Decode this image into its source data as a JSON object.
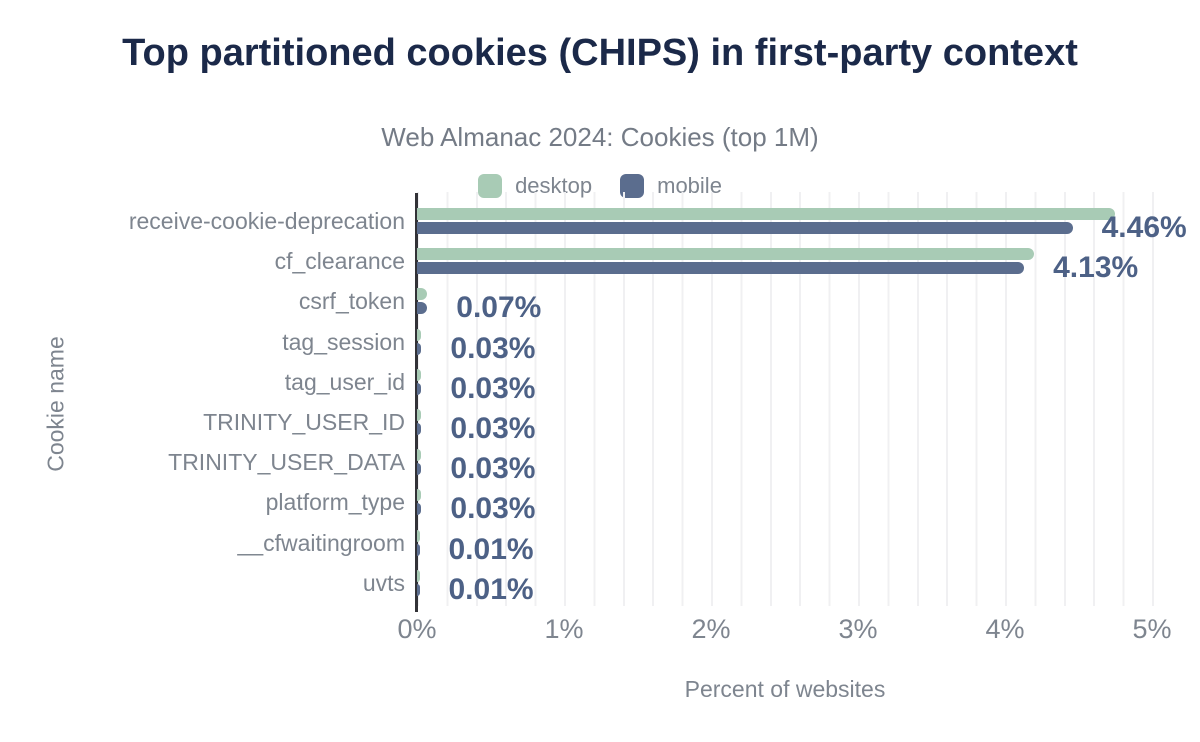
{
  "chart_data": {
    "type": "bar",
    "orientation": "horizontal",
    "title": "Top partitioned cookies (CHIPS) in first-party context",
    "subtitle": "Web Almanac 2024: Cookies (top 1M)",
    "xlabel": "Percent of websites",
    "ylabel": "Cookie name",
    "xlim": [
      0,
      5
    ],
    "xtick_labels": [
      "0%",
      "1%",
      "2%",
      "3%",
      "4%",
      "5%"
    ],
    "xtick_values": [
      0,
      1,
      2,
      3,
      4,
      5
    ],
    "grid": {
      "minor_step_pct": 0.2,
      "on": true
    },
    "legend_position": "top",
    "categories": [
      "receive-cookie-deprecation",
      "cf_clearance",
      "csrf_token",
      "tag_session",
      "tag_user_id",
      "TRINITY_USER_ID",
      "TRINITY_USER_DATA",
      "platform_type",
      "__cfwaitingroom",
      "uvts"
    ],
    "series": [
      {
        "name": "desktop",
        "values": [
          4.75,
          4.2,
          0.07,
          0.03,
          0.03,
          0.03,
          0.03,
          0.03,
          0.01,
          0.01
        ]
      },
      {
        "name": "mobile",
        "values": [
          4.46,
          4.13,
          0.07,
          0.03,
          0.03,
          0.03,
          0.03,
          0.03,
          0.01,
          0.01
        ],
        "data_labels": [
          "4.46%",
          "4.13%",
          "0.07%",
          "0.03%",
          "0.03%",
          "0.03%",
          "0.03%",
          "0.03%",
          "0.01%",
          "0.01%"
        ]
      }
    ]
  },
  "colors": {
    "desktop": "#a8cbb5",
    "mobile": "#5b6d8e",
    "value_label": "#4d6186",
    "title": "#1b2949",
    "subtitle": "#747b86",
    "muted_text": "#7e858f",
    "gridline": "#f0f0f2",
    "axis_line": "#323237",
    "background": "#ffffff"
  }
}
